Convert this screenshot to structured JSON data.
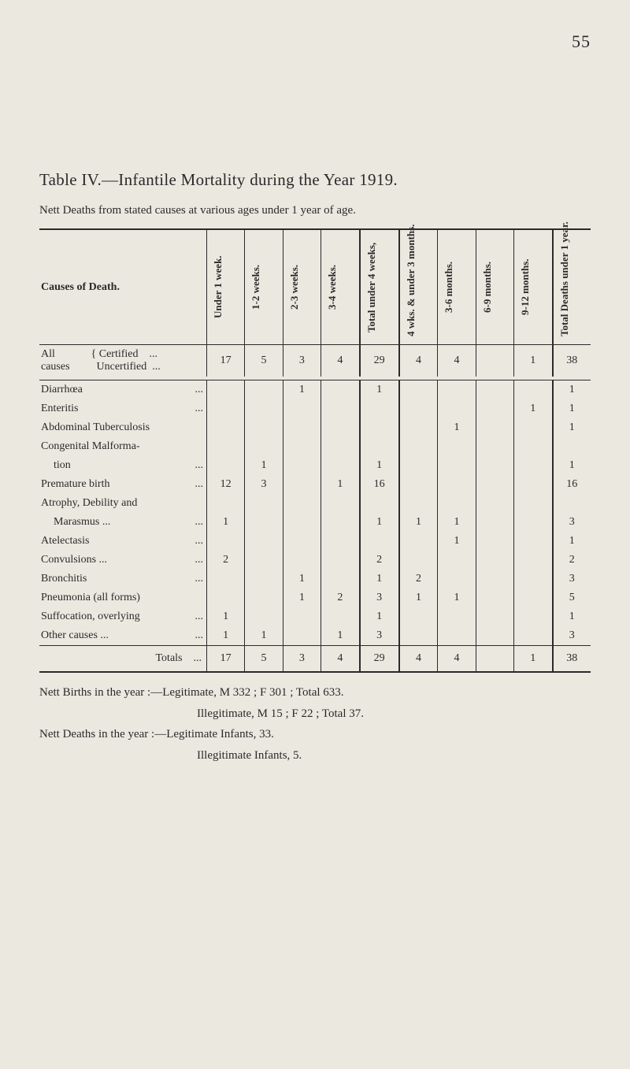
{
  "page_number": "55",
  "title": "Table IV.—Infantile Mortality during the Year 1919.",
  "subtitle": "Nett Deaths from stated causes at various ages under 1 year of age.",
  "columns": {
    "cause": "Causes of Death.",
    "c1": "Under 1 week.",
    "c2": "1-2 weeks.",
    "c3": "2-3 weeks.",
    "c4": "3-4 weeks.",
    "c5": "Total under 4 weeks,",
    "c6": "4 wks. & under 3 months.",
    "c7": "3-6 months.",
    "c8": "6-9 months.",
    "c9": "9-12 months.",
    "c10": "Total Deaths under 1 year."
  },
  "all_causes": {
    "label_all": "All",
    "label_causes": "causes",
    "cert": "Certified",
    "uncert": "Uncertified",
    "ellipsis": "...",
    "row": {
      "c1": "17",
      "c2": "5",
      "c3": "3",
      "c4": "4",
      "c5": "29",
      "c6": "4",
      "c7": "4",
      "c8": "",
      "c9": "1",
      "c10": "38"
    }
  },
  "rows": [
    {
      "cause": "Diarrhœa",
      "ell": "...",
      "c1": "",
      "c2": "",
      "c3": "1",
      "c4": "",
      "c5": "1",
      "c6": "",
      "c7": "",
      "c8": "",
      "c9": "",
      "c10": "1"
    },
    {
      "cause": "Enteritis",
      "ell": "...",
      "c1": "",
      "c2": "",
      "c3": "",
      "c4": "",
      "c5": "",
      "c6": "",
      "c7": "",
      "c8": "",
      "c9": "1",
      "c10": "1"
    },
    {
      "cause": "Abdominal Tuberculosis",
      "ell": "",
      "c1": "",
      "c2": "",
      "c3": "",
      "c4": "",
      "c5": "",
      "c6": "",
      "c7": "1",
      "c8": "",
      "c9": "",
      "c10": "1"
    },
    {
      "cause": "Congenital Malforma-",
      "ell": "",
      "c1": "",
      "c2": "",
      "c3": "",
      "c4": "",
      "c5": "",
      "c6": "",
      "c7": "",
      "c8": "",
      "c9": "",
      "c10": ""
    },
    {
      "cause": "tion",
      "ell": "...",
      "indent": true,
      "c1": "",
      "c2": "1",
      "c3": "",
      "c4": "",
      "c5": "1",
      "c6": "",
      "c7": "",
      "c8": "",
      "c9": "",
      "c10": "1"
    },
    {
      "cause": "Premature birth",
      "ell": "...",
      "c1": "12",
      "c2": "3",
      "c3": "",
      "c4": "1",
      "c5": "16",
      "c6": "",
      "c7": "",
      "c8": "",
      "c9": "",
      "c10": "16"
    },
    {
      "cause": "Atrophy, Debility and",
      "ell": "",
      "c1": "",
      "c2": "",
      "c3": "",
      "c4": "",
      "c5": "",
      "c6": "",
      "c7": "",
      "c8": "",
      "c9": "",
      "c10": ""
    },
    {
      "cause": "Marasmus ...",
      "ell": "...",
      "indent": true,
      "c1": "1",
      "c2": "",
      "c3": "",
      "c4": "",
      "c5": "1",
      "c6": "1",
      "c7": "1",
      "c8": "",
      "c9": "",
      "c10": "3"
    },
    {
      "cause": "Atelectasis",
      "ell": "...",
      "c1": "",
      "c2": "",
      "c3": "",
      "c4": "",
      "c5": "",
      "c6": "",
      "c7": "1",
      "c8": "",
      "c9": "",
      "c10": "1"
    },
    {
      "cause": "Convulsions ...",
      "ell": "...",
      "c1": "2",
      "c2": "",
      "c3": "",
      "c4": "",
      "c5": "2",
      "c6": "",
      "c7": "",
      "c8": "",
      "c9": "",
      "c10": "2"
    },
    {
      "cause": "Bronchitis",
      "ell": "...",
      "c1": "",
      "c2": "",
      "c3": "1",
      "c4": "",
      "c5": "1",
      "c6": "2",
      "c7": "",
      "c8": "",
      "c9": "",
      "c10": "3"
    },
    {
      "cause": "Pneumonia (all forms)",
      "ell": "",
      "c1": "",
      "c2": "",
      "c3": "1",
      "c4": "2",
      "c5": "3",
      "c6": "1",
      "c7": "1",
      "c8": "",
      "c9": "",
      "c10": "5"
    },
    {
      "cause": "Suffocation, overlying",
      "ell": "...",
      "c1": "1",
      "c2": "",
      "c3": "",
      "c4": "",
      "c5": "1",
      "c6": "",
      "c7": "",
      "c8": "",
      "c9": "",
      "c10": "1"
    },
    {
      "cause": "Other causes ...",
      "ell": "...",
      "c1": "1",
      "c2": "1",
      "c3": "",
      "c4": "1",
      "c5": "3",
      "c6": "",
      "c7": "",
      "c8": "",
      "c9": "",
      "c10": "3"
    }
  ],
  "totals": {
    "label": "Totals",
    "ell": "...",
    "c1": "17",
    "c2": "5",
    "c3": "3",
    "c4": "4",
    "c5": "29",
    "c6": "4",
    "c7": "4",
    "c8": "",
    "c9": "1",
    "c10": "38"
  },
  "footnotes": {
    "line1": "Nett Births in the year :—Legitimate, M 332 ; F 301 ; Total 633.",
    "line2": "Illegitimate, M 15 ; F 22 ; Total 37.",
    "line3": "Nett Deaths in the year :—Legitimate Infants, 33.",
    "line4": "Illegitimate Infants, 5."
  }
}
